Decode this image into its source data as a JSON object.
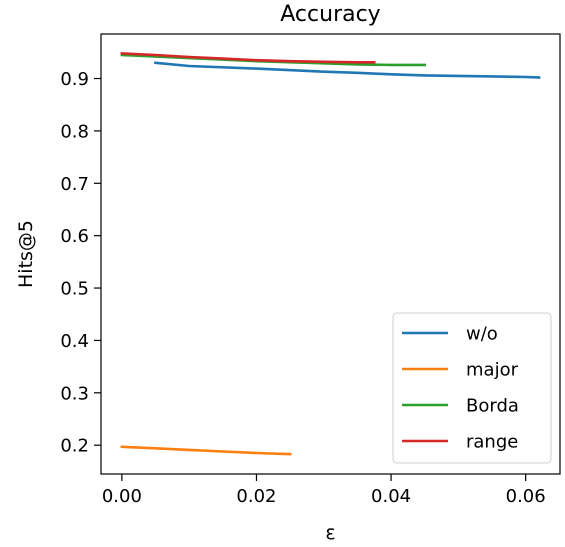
{
  "chart_data": {
    "type": "line",
    "title": "Accuracy",
    "xlabel": "ε",
    "ylabel": "Hits@5",
    "xlim": [
      -0.0031,
      0.0651
    ],
    "ylim": [
      0.145,
      0.985
    ],
    "xticks": [
      0.0,
      0.02,
      0.04,
      0.06
    ],
    "xtick_labels": [
      "0.00",
      "0.02",
      "0.04",
      "0.06"
    ],
    "yticks": [
      0.2,
      0.3,
      0.4,
      0.5,
      0.6,
      0.7,
      0.8,
      0.9
    ],
    "ytick_labels": [
      "0.2",
      "0.3",
      "0.4",
      "0.5",
      "0.6",
      "0.7",
      "0.8",
      "0.9"
    ],
    "grid": false,
    "legend_position": "lower-right",
    "series": [
      {
        "name": "w/o",
        "color": "#1f77b4",
        "x": [
          0.005,
          0.01,
          0.02,
          0.03,
          0.035,
          0.04,
          0.045,
          0.05,
          0.055,
          0.06,
          0.062
        ],
        "y": [
          0.93,
          0.924,
          0.919,
          0.913,
          0.911,
          0.908,
          0.906,
          0.905,
          0.904,
          0.903,
          0.902
        ]
      },
      {
        "name": "major",
        "color": "#ff7f0e",
        "x": [
          0.0,
          0.005,
          0.01,
          0.015,
          0.02,
          0.025
        ],
        "y": [
          0.197,
          0.194,
          0.191,
          0.188,
          0.185,
          0.183
        ]
      },
      {
        "name": "Borda",
        "color": "#2ca02c",
        "x": [
          0.0,
          0.01,
          0.02,
          0.03,
          0.035,
          0.04,
          0.045
        ],
        "y": [
          0.945,
          0.939,
          0.933,
          0.929,
          0.927,
          0.926,
          0.926
        ]
      },
      {
        "name": "range",
        "color": "#d62728",
        "x": [
          0.0,
          0.005,
          0.01,
          0.015,
          0.02,
          0.025,
          0.03,
          0.035,
          0.0375
        ],
        "y": [
          0.948,
          0.945,
          0.941,
          0.938,
          0.935,
          0.933,
          0.932,
          0.931,
          0.931
        ]
      }
    ]
  }
}
